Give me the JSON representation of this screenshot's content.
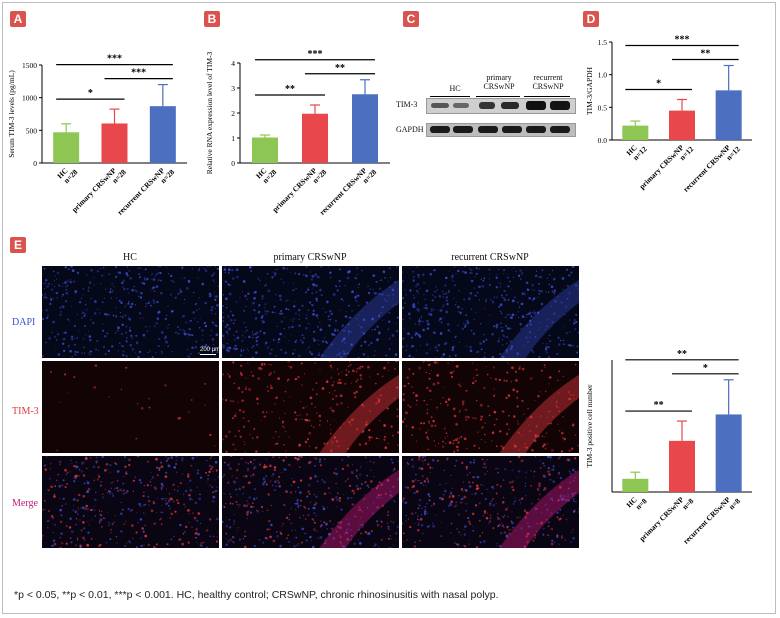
{
  "figure": {
    "caption": "*p < 0.05, **p < 0.01, ***p < 0.001. HC, healthy control; CRSwNP, chronic rhinosinusitis with nasal polyp."
  },
  "panels": {
    "A": "A",
    "B": "B",
    "C": "C",
    "D": "D",
    "E": "E"
  },
  "western_blot": {
    "columns": [
      "HC",
      "primary\nCRSwNP",
      "recurrent\nCRSwNP"
    ],
    "col_primary_1": "primary",
    "col_primary_2": "CRSwNP",
    "col_recurrent_1": "recurrent",
    "col_recurrent_2": "CRSwNP",
    "col_hc": "HC",
    "rows": [
      "TIM-3",
      "GAPDH"
    ]
  },
  "immunofluorescence": {
    "columns": [
      "HC",
      "primary CRSwNP",
      "recurrent CRSwNP"
    ],
    "rows": [
      "DAPI",
      "TIM-3",
      "Merge"
    ],
    "scale_bar": "200 μm",
    "colors": {
      "DAPI": "#3b4fd6",
      "TIM-3": "#e0383e",
      "Merge": "#c2187a"
    }
  },
  "chart_data": [
    {
      "id": "A",
      "type": "bar",
      "categories": [
        "HC",
        "primary CRSwNP",
        "recurrent CRSwNP"
      ],
      "n_labels": [
        "n=28",
        "n=28",
        "n=28"
      ],
      "values": [
        470,
        605,
        870
      ],
      "errors": [
        130,
        220,
        330
      ],
      "colors": [
        "#8dc653",
        "#e8474b",
        "#4c6fbf"
      ],
      "ylabel": "Serum TIM-3 levels (pg/mL)",
      "ylim": [
        0,
        1500
      ],
      "yticks": [
        0,
        500,
        1000,
        1500
      ],
      "significance": [
        {
          "from": 0,
          "to": 1,
          "label": "*"
        },
        {
          "from": 1,
          "to": 2,
          "label": "***"
        },
        {
          "from": 0,
          "to": 2,
          "label": "***"
        }
      ]
    },
    {
      "id": "B",
      "type": "bar",
      "categories": [
        "HC",
        "primary CRSwNP",
        "recurrent CRSwNP"
      ],
      "n_labels": [
        "n=28",
        "n=28",
        "n=28"
      ],
      "values": [
        1.02,
        1.97,
        2.75
      ],
      "errors": [
        0.1,
        0.35,
        0.58
      ],
      "colors": [
        "#8dc653",
        "#e8474b",
        "#4c6fbf"
      ],
      "ylabel": "Relative RNA expression level of TIM-3",
      "ylim": [
        0,
        4
      ],
      "yticks": [
        0,
        1,
        2,
        3,
        4
      ],
      "significance": [
        {
          "from": 0,
          "to": 1,
          "label": "**"
        },
        {
          "from": 1,
          "to": 2,
          "label": "**"
        },
        {
          "from": 0,
          "to": 2,
          "label": "***"
        }
      ]
    },
    {
      "id": "D",
      "type": "bar",
      "categories": [
        "HC",
        "primary CRSwNP",
        "recurrent CRSwNP"
      ],
      "n_labels": [
        "n=12",
        "n=12",
        "n=12"
      ],
      "values": [
        0.22,
        0.45,
        0.76
      ],
      "errors": [
        0.07,
        0.17,
        0.38
      ],
      "colors": [
        "#8dc653",
        "#e8474b",
        "#4c6fbf"
      ],
      "ylabel": "TIM-3/GAPDH",
      "ylim": [
        0,
        1.5
      ],
      "yticks": [
        0.0,
        0.5,
        1.0,
        1.5
      ],
      "significance": [
        {
          "from": 0,
          "to": 1,
          "label": "*"
        },
        {
          "from": 1,
          "to": 2,
          "label": "**"
        },
        {
          "from": 0,
          "to": 2,
          "label": "***"
        }
      ]
    },
    {
      "id": "E",
      "type": "bar",
      "categories": [
        "HC",
        "primary CRSwNP",
        "recurrent CRSwNP"
      ],
      "n_labels": [
        "n=8",
        "n=8",
        "n=8"
      ],
      "values": [
        8,
        31,
        47
      ],
      "errors": [
        4,
        12,
        21
      ],
      "colors": [
        "#8dc653",
        "#e8474b",
        "#4c6fbf"
      ],
      "ylabel": "TIM-3 positive cell number",
      "ylim": [
        0,
        80
      ],
      "significance": [
        {
          "from": 0,
          "to": 1,
          "label": "**"
        },
        {
          "from": 1,
          "to": 2,
          "label": "*"
        },
        {
          "from": 0,
          "to": 2,
          "label": "**"
        }
      ]
    }
  ]
}
